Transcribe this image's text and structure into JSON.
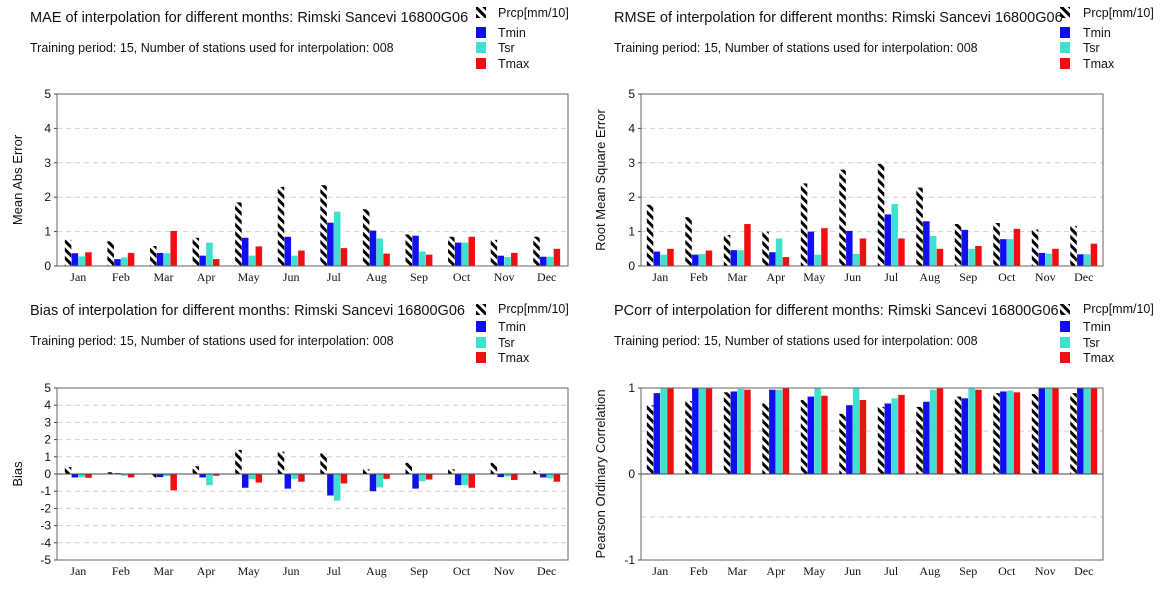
{
  "colors": {
    "Prcp": "hatch-black",
    "Tmin": "#1010ee",
    "Tsr": "#40e0d0",
    "Tmax": "#ee1010"
  },
  "chart_data": [
    {
      "type": "bar",
      "title": "MAE of interpolation for different months: Rimski Sancevi   16800G06",
      "subtitle": "Training period: 15, Number of stations used for interpolation: 008",
      "ylabel": "Mean Abs Error",
      "xlabel": "",
      "ylim": [
        0,
        5
      ],
      "yticks": [
        "0",
        "1",
        "2",
        "3",
        "4",
        "5"
      ],
      "ytick_values": [
        0,
        1,
        2,
        3,
        4,
        5
      ],
      "grid": true,
      "legend_position": "top-right",
      "categories": [
        "Jan",
        "Feb",
        "Mar",
        "Apr",
        "May",
        "Jun",
        "Jul",
        "Aug",
        "Sep",
        "Oct",
        "Nov",
        "Dec"
      ],
      "series": [
        {
          "name": "Prcp[mm/10]",
          "values": [
            0.76,
            0.72,
            0.58,
            0.82,
            1.85,
            2.3,
            2.35,
            1.65,
            0.92,
            0.85,
            0.76,
            0.85
          ]
        },
        {
          "name": "Tmin",
          "values": [
            0.37,
            0.2,
            0.38,
            0.3,
            0.82,
            0.85,
            1.26,
            1.03,
            0.88,
            0.68,
            0.3,
            0.27
          ]
        },
        {
          "name": "Tsr",
          "values": [
            0.28,
            0.25,
            0.37,
            0.68,
            0.3,
            0.3,
            1.58,
            0.8,
            0.42,
            0.68,
            0.26,
            0.27
          ]
        },
        {
          "name": "Tmax",
          "values": [
            0.4,
            0.38,
            1.02,
            0.2,
            0.57,
            0.45,
            0.52,
            0.36,
            0.33,
            0.85,
            0.38,
            0.5
          ]
        }
      ]
    },
    {
      "type": "bar",
      "title": "RMSE of interpolation for different months: Rimski Sancevi   16800G06",
      "subtitle": "Training period: 15, Number of stations used for interpolation: 008",
      "ylabel": "Root Mean Square Error",
      "xlabel": "",
      "ylim": [
        0,
        5
      ],
      "yticks": [
        "0",
        "1",
        "2",
        "3",
        "4",
        "5"
      ],
      "ytick_values": [
        0,
        1,
        2,
        3,
        4,
        5
      ],
      "grid": true,
      "legend_position": "top-right",
      "categories": [
        "Jan",
        "Feb",
        "Mar",
        "Apr",
        "May",
        "Jun",
        "Jul",
        "Aug",
        "Sep",
        "Oct",
        "Nov",
        "Dec"
      ],
      "series": [
        {
          "name": "Prcp[mm/10]",
          "values": [
            1.78,
            1.42,
            0.9,
            1.0,
            2.4,
            2.8,
            2.97,
            2.28,
            1.22,
            1.25,
            1.06,
            1.16
          ]
        },
        {
          "name": "Tmin",
          "values": [
            0.42,
            0.33,
            0.46,
            0.4,
            1.0,
            1.02,
            1.5,
            1.3,
            1.05,
            0.78,
            0.38,
            0.34
          ]
        },
        {
          "name": "Tsr",
          "values": [
            0.33,
            0.35,
            0.46,
            0.8,
            0.33,
            0.35,
            1.8,
            0.87,
            0.5,
            0.78,
            0.36,
            0.34
          ]
        },
        {
          "name": "Tmax",
          "values": [
            0.5,
            0.45,
            1.22,
            0.26,
            1.1,
            0.8,
            0.8,
            0.5,
            0.58,
            1.08,
            0.5,
            0.65
          ]
        }
      ]
    },
    {
      "type": "bar",
      "title": "Bias of interpolation for different months: Rimski Sancevi   16800G06",
      "subtitle": "Training period: 15, Number of stations used for interpolation: 008",
      "ylabel": "Bias",
      "xlabel": "",
      "ylim": [
        -5,
        5
      ],
      "yticks": [
        "-5",
        "-4",
        "-3",
        "-2",
        "-1",
        "0",
        "1",
        "2",
        "3",
        "4",
        "5"
      ],
      "ytick_values": [
        -5,
        -4,
        -3,
        -2,
        -1,
        0,
        1,
        2,
        3,
        4,
        5
      ],
      "grid": true,
      "legend_position": "top-right",
      "categories": [
        "Jan",
        "Feb",
        "Mar",
        "Apr",
        "May",
        "Jun",
        "Jul",
        "Aug",
        "Sep",
        "Oct",
        "Nov",
        "Dec"
      ],
      "series": [
        {
          "name": "Prcp[mm/10]",
          "values": [
            0.4,
            0.1,
            -0.2,
            0.45,
            1.4,
            1.3,
            1.2,
            0.28,
            0.65,
            0.28,
            0.65,
            0.18
          ]
        },
        {
          "name": "Tmin",
          "values": [
            -0.2,
            0.05,
            -0.18,
            -0.2,
            -0.8,
            -0.85,
            -1.25,
            -1.0,
            -0.85,
            -0.65,
            -0.18,
            -0.2
          ]
        },
        {
          "name": "Tsr",
          "values": [
            -0.2,
            -0.1,
            -0.12,
            -0.65,
            -0.3,
            -0.28,
            -1.55,
            -0.78,
            -0.42,
            -0.65,
            -0.15,
            -0.25
          ]
        },
        {
          "name": "Tmax",
          "values": [
            -0.22,
            -0.2,
            -0.95,
            -0.1,
            -0.5,
            -0.45,
            -0.55,
            -0.28,
            -0.32,
            -0.8,
            -0.35,
            -0.45
          ]
        }
      ]
    },
    {
      "type": "bar",
      "title": "PCorr of interpolation for different months: Rimski Sancevi   16800G06",
      "subtitle": "Training period: 15, Number of stations used for interpolation: 008",
      "ylabel": "Pearson Ordinary Correlation",
      "xlabel": "",
      "ylim": [
        -1,
        1
      ],
      "yticks": [
        "-1",
        "0",
        "1"
      ],
      "ytick_values": [
        -1,
        0,
        1
      ],
      "gridlines": [
        -0.5,
        0.5
      ],
      "grid": true,
      "legend_position": "top-right",
      "categories": [
        "Jan",
        "Feb",
        "Mar",
        "Apr",
        "May",
        "Jun",
        "Jul",
        "Aug",
        "Sep",
        "Oct",
        "Nov",
        "Dec"
      ],
      "series": [
        {
          "name": "Prcp[mm/10]",
          "values": [
            0.8,
            0.85,
            0.95,
            0.82,
            0.86,
            0.7,
            0.78,
            0.78,
            0.9,
            0.94,
            0.93,
            0.94
          ]
        },
        {
          "name": "Tmin",
          "values": [
            0.94,
            1.0,
            0.96,
            0.98,
            0.9,
            0.8,
            0.82,
            0.84,
            0.88,
            0.96,
            1.0,
            1.0
          ]
        },
        {
          "name": "Tsr",
          "values": [
            1.0,
            1.0,
            0.99,
            0.98,
            1.0,
            1.0,
            0.88,
            0.98,
            1.0,
            0.97,
            1.0,
            1.0
          ]
        },
        {
          "name": "Tmax",
          "values": [
            1.0,
            1.0,
            0.98,
            1.0,
            0.91,
            0.86,
            0.92,
            1.0,
            0.98,
            0.95,
            1.0,
            1.0
          ]
        }
      ]
    }
  ]
}
